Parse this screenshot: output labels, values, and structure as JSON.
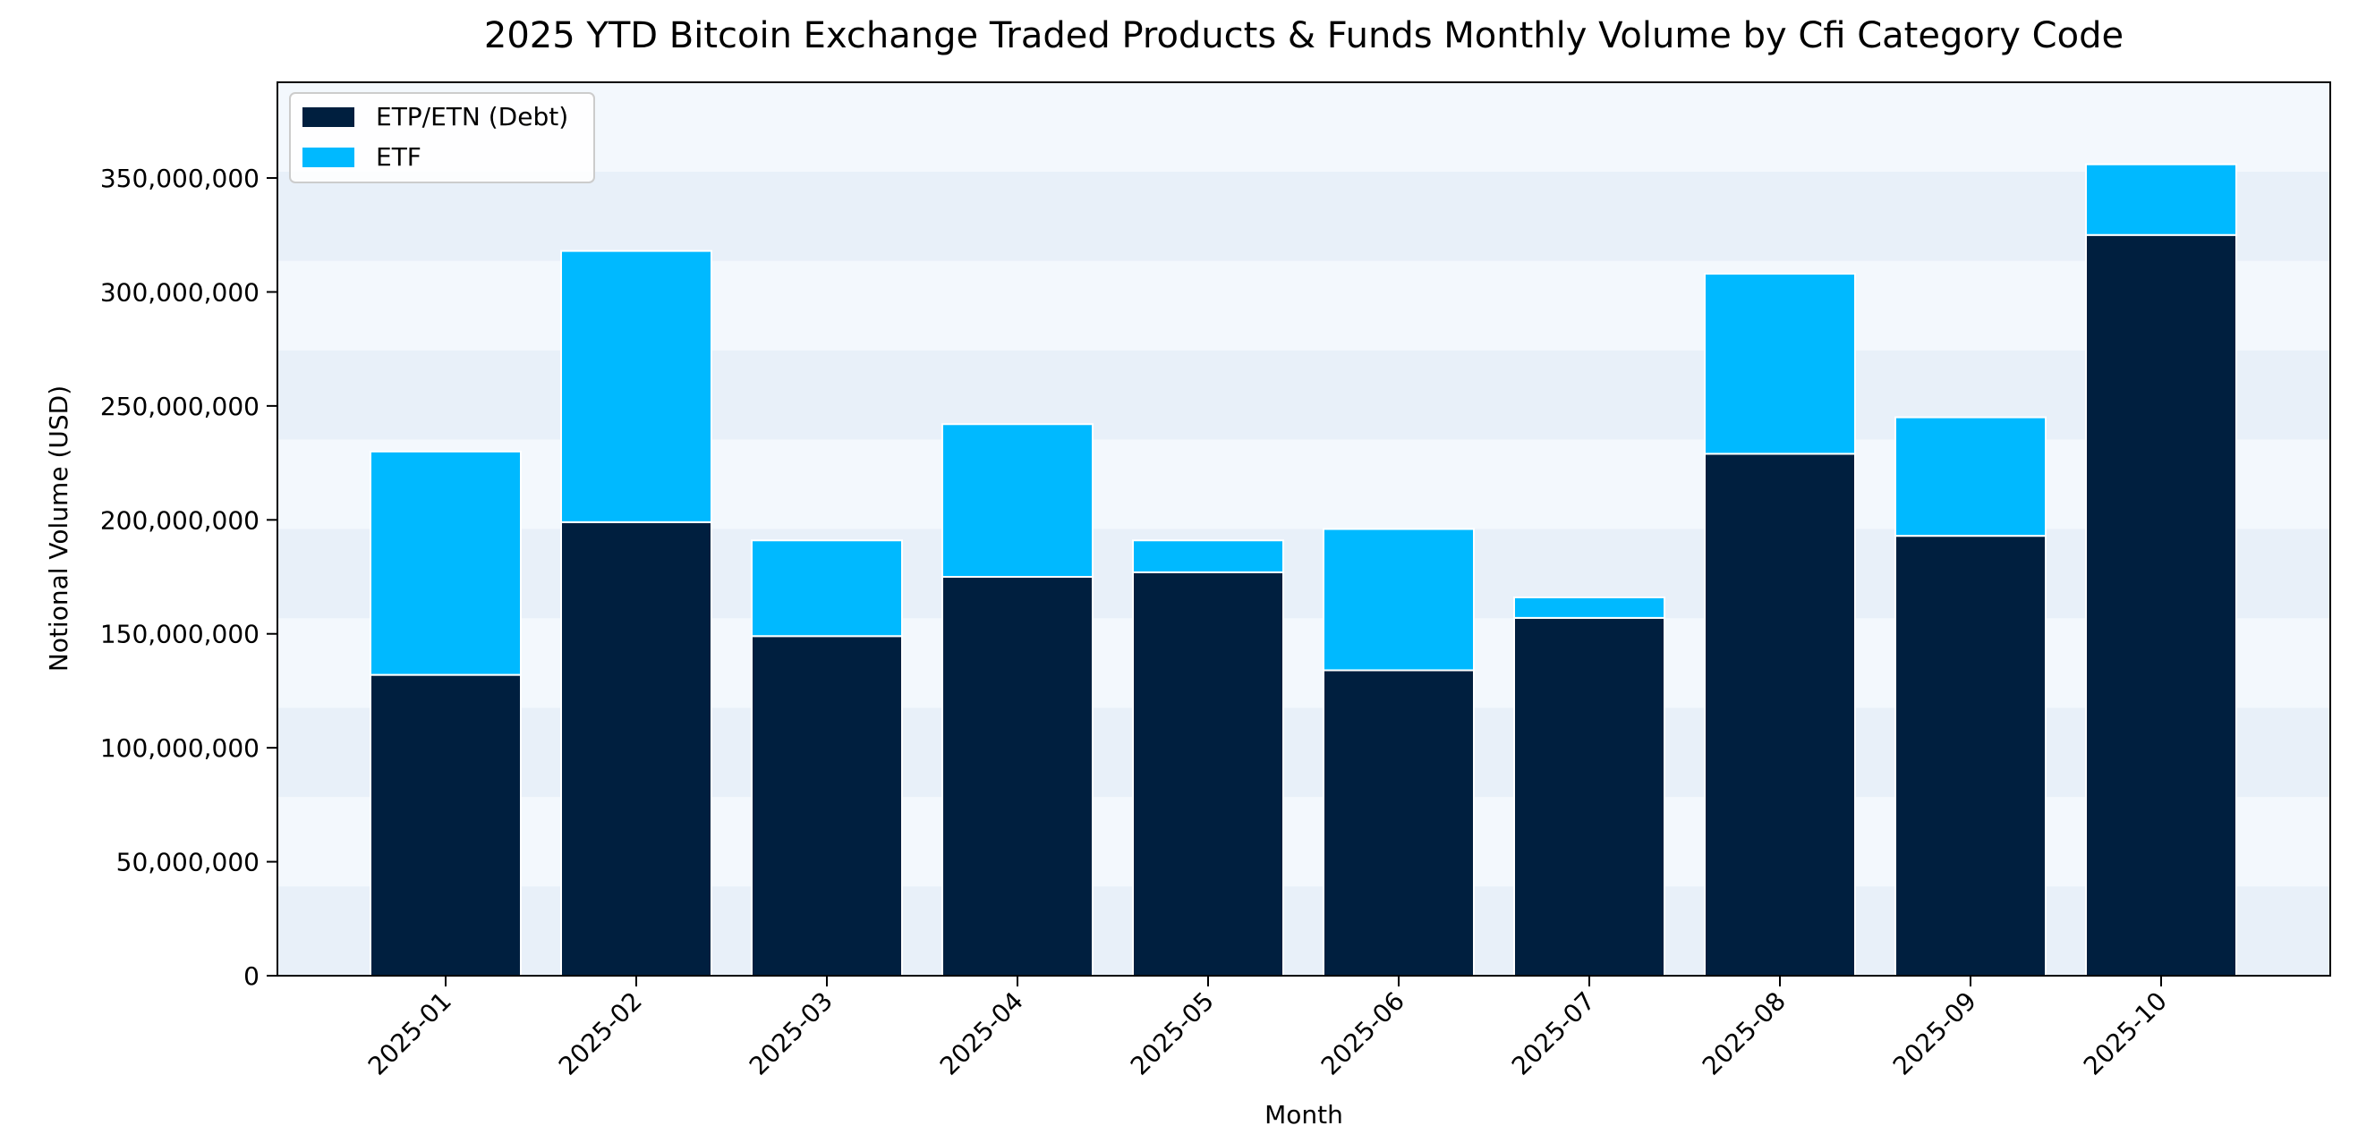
{
  "chart_data": {
    "type": "bar",
    "stacked": true,
    "title": "2025 YTD Bitcoin Exchange Traded Products & Funds Monthly Volume by Cfi Category Code",
    "xlabel": "Month",
    "ylabel": "Notional Volume (USD)",
    "categories": [
      "2025-01",
      "2025-02",
      "2025-03",
      "2025-04",
      "2025-05",
      "2025-06",
      "2025-07",
      "2025-08",
      "2025-09",
      "2025-10"
    ],
    "series": [
      {
        "name": "ETP/ETN (Debt)",
        "color": "#001f3f",
        "values": [
          132000000,
          199000000,
          149000000,
          175000000,
          177000000,
          134000000,
          157000000,
          229000000,
          193000000,
          325000000
        ]
      },
      {
        "name": "ETF",
        "color": "#00b9ff",
        "values": [
          98000000,
          119000000,
          42000000,
          67000000,
          14000000,
          62000000,
          9000000,
          79000000,
          52000000,
          31000000
        ]
      }
    ],
    "ylim": [
      0,
      392000000
    ],
    "yticks": [
      0,
      50000000,
      100000000,
      150000000,
      200000000,
      250000000,
      300000000,
      350000000
    ],
    "ytick_labels": [
      "0",
      "50,000,000",
      "100,000,000",
      "150,000,000",
      "200,000,000",
      "250,000,000",
      "300,000,000",
      "350,000,000"
    ],
    "legend_position": "top-left",
    "band_colors": [
      "#e8f0f9",
      "#f3f8fd"
    ]
  }
}
